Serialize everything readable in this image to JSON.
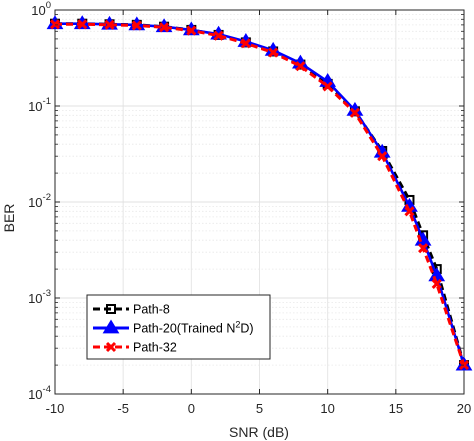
{
  "chart_data": {
    "type": "line",
    "xlabel": "SNR (dB)",
    "ylabel": "BER",
    "xlim": [
      -10,
      20
    ],
    "ylim": [
      0.0001,
      1
    ],
    "yscale": "log",
    "grid": true,
    "legend_position": "bottom-left",
    "x_ticks": [
      "-10",
      "-5",
      "0",
      "5",
      "10",
      "15",
      "20"
    ],
    "y_ticks": [
      {
        "base": "10",
        "exp": "0",
        "value": 1
      },
      {
        "base": "10",
        "exp": "-1",
        "value": 0.1
      },
      {
        "base": "10",
        "exp": "-2",
        "value": 0.01
      },
      {
        "base": "10",
        "exp": "-3",
        "value": 0.001
      },
      {
        "base": "10",
        "exp": "-4",
        "value": 0.0001
      }
    ],
    "x": [
      -10,
      -8,
      -6,
      -4,
      -2,
      0,
      2,
      4,
      6,
      8,
      10,
      12,
      14,
      16,
      17,
      18,
      20
    ],
    "series": [
      {
        "name": "Path-8",
        "color": "#000000",
        "dash": "dashed",
        "marker": "square",
        "values": [
          0.72,
          0.72,
          0.71,
          0.7,
          0.67,
          0.62,
          0.55,
          0.46,
          0.37,
          0.27,
          0.17,
          0.088,
          0.034,
          0.0105,
          0.0045,
          0.002,
          0.0002
        ]
      },
      {
        "name": "Path-20(Trained N2D)",
        "name_prefix": "Path-20(Trained N",
        "name_sup": "2",
        "name_suffix": "D)",
        "color": "#0000ff",
        "dash": "solid",
        "marker": "triangle",
        "values": [
          0.72,
          0.72,
          0.71,
          0.7,
          0.67,
          0.62,
          0.56,
          0.47,
          0.38,
          0.28,
          0.18,
          0.09,
          0.033,
          0.009,
          0.004,
          0.0017,
          0.0002
        ]
      },
      {
        "name": "Path-32",
        "color": "#ff0000",
        "dash": "dashed",
        "marker": "x",
        "values": [
          0.71,
          0.71,
          0.7,
          0.69,
          0.66,
          0.61,
          0.54,
          0.45,
          0.36,
          0.26,
          0.16,
          0.085,
          0.03,
          0.008,
          0.0033,
          0.0014,
          0.0002
        ]
      }
    ]
  }
}
